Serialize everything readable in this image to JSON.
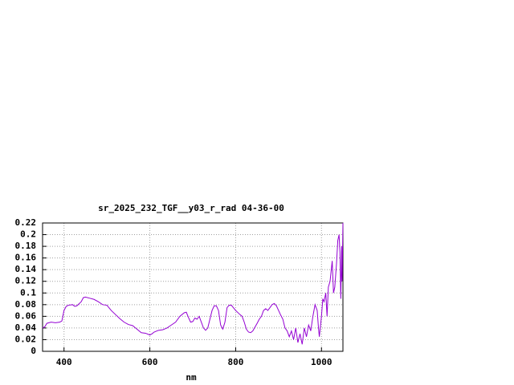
{
  "chart_data": {
    "type": "line",
    "title": "sr_2025_232_TGF__y03_r_rad 04-36-00",
    "x_label": "nm",
    "xlim": [
      350,
      1050
    ],
    "xticks": [
      400,
      600,
      800,
      1000
    ],
    "ylim": [
      0,
      0.22
    ],
    "yticks": [
      0,
      0.02,
      0.04,
      0.06,
      0.08,
      0.1,
      0.12,
      0.14,
      0.16,
      0.18,
      0.2,
      0.22
    ],
    "grid": true,
    "series": [
      {
        "color": "#9400d3",
        "x": [
          350,
          355,
          360,
          370,
          380,
          390,
          395,
          400,
          405,
          410,
          420,
          425,
          430,
          440,
          445,
          450,
          460,
          470,
          480,
          490,
          500,
          510,
          520,
          530,
          540,
          550,
          560,
          570,
          580,
          590,
          600,
          605,
          610,
          620,
          630,
          640,
          650,
          660,
          670,
          680,
          685,
          690,
          695,
          700,
          705,
          710,
          715,
          720,
          725,
          730,
          735,
          740,
          745,
          750,
          755,
          760,
          765,
          770,
          775,
          780,
          785,
          790,
          800,
          810,
          815,
          820,
          825,
          830,
          835,
          840,
          850,
          855,
          860,
          865,
          870,
          875,
          880,
          885,
          890,
          895,
          900,
          905,
          910,
          915,
          920,
          925,
          930,
          935,
          940,
          945,
          950,
          955,
          960,
          965,
          970,
          975,
          980,
          985,
          990,
          993,
          995,
          1000,
          1003,
          1006,
          1010,
          1013,
          1016,
          1020,
          1025,
          1028,
          1031,
          1035,
          1038,
          1041,
          1043,
          1045,
          1047,
          1048,
          1050
        ],
        "values": [
          0.04,
          0.042,
          0.048,
          0.05,
          0.049,
          0.05,
          0.052,
          0.07,
          0.077,
          0.079,
          0.08,
          0.077,
          0.078,
          0.085,
          0.092,
          0.093,
          0.091,
          0.089,
          0.085,
          0.08,
          0.079,
          0.07,
          0.063,
          0.056,
          0.05,
          0.046,
          0.044,
          0.038,
          0.032,
          0.031,
          0.028,
          0.03,
          0.033,
          0.036,
          0.037,
          0.04,
          0.045,
          0.05,
          0.06,
          0.066,
          0.067,
          0.058,
          0.05,
          0.051,
          0.057,
          0.055,
          0.06,
          0.05,
          0.04,
          0.036,
          0.04,
          0.055,
          0.07,
          0.078,
          0.078,
          0.07,
          0.045,
          0.038,
          0.05,
          0.075,
          0.079,
          0.079,
          0.07,
          0.063,
          0.06,
          0.05,
          0.038,
          0.033,
          0.032,
          0.035,
          0.048,
          0.055,
          0.06,
          0.07,
          0.073,
          0.07,
          0.075,
          0.08,
          0.082,
          0.078,
          0.07,
          0.062,
          0.055,
          0.04,
          0.035,
          0.025,
          0.035,
          0.02,
          0.04,
          0.015,
          0.03,
          0.012,
          0.04,
          0.025,
          0.045,
          0.035,
          0.06,
          0.08,
          0.07,
          0.04,
          0.025,
          0.06,
          0.09,
          0.085,
          0.1,
          0.06,
          0.11,
          0.12,
          0.155,
          0.1,
          0.11,
          0.15,
          0.19,
          0.2,
          0.17,
          0.09,
          0.18,
          0.12,
          0.22
        ]
      }
    ]
  }
}
